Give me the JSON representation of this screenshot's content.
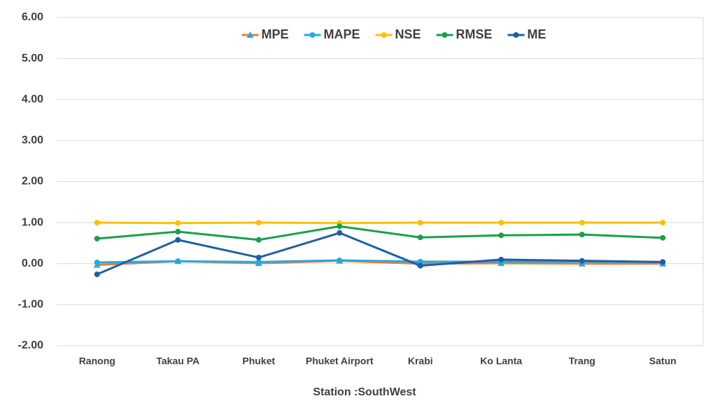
{
  "chart_data": {
    "type": "line",
    "x_label": "Station :SouthWest",
    "categories": [
      "Ranong",
      "Takau PA",
      "Phuket",
      "Phuket Airport",
      "Krabi",
      "Ko Lanta",
      "Trang",
      "Satun"
    ],
    "series": [
      {
        "name": "MPE",
        "color": "#ed7d31",
        "marker": "triangle",
        "marker_color": "#29a8e0",
        "values": [
          -0.03,
          0.06,
          0.01,
          0.07,
          0.0,
          0.01,
          0.0,
          0.0
        ]
      },
      {
        "name": "MAPE",
        "color": "#29a8e0",
        "marker": "circle",
        "marker_color": "#29a8e0",
        "values": [
          0.03,
          0.06,
          0.04,
          0.08,
          0.05,
          0.05,
          0.05,
          0.04
        ]
      },
      {
        "name": "NSE",
        "color": "#ffc000",
        "marker": "circle",
        "marker_color": "#ffc000",
        "values": [
          1.0,
          0.99,
          1.0,
          0.99,
          1.0,
          1.0,
          1.0,
          1.0
        ]
      },
      {
        "name": "RMSE",
        "color": "#1aa04a",
        "marker": "circle",
        "marker_color": "#1aa04a",
        "values": [
          0.61,
          0.78,
          0.58,
          0.91,
          0.64,
          0.69,
          0.71,
          0.63
        ]
      },
      {
        "name": "ME",
        "color": "#1f5fa8",
        "marker": "circle",
        "marker_color": "#1f5fa8",
        "values": [
          -0.26,
          0.58,
          0.15,
          0.75,
          -0.05,
          0.1,
          0.07,
          0.04
        ]
      }
    ],
    "ylim": [
      -2,
      6
    ],
    "yticks": [
      {
        "value": -2,
        "label": "-2.00"
      },
      {
        "value": -1,
        "label": "-1.00"
      },
      {
        "value": 0,
        "label": "0.00"
      },
      {
        "value": 1,
        "label": "1.00"
      },
      {
        "value": 2,
        "label": "2.00"
      },
      {
        "value": 3,
        "label": "3.00"
      },
      {
        "value": 4,
        "label": "4.00"
      },
      {
        "value": 5,
        "label": "5.00"
      },
      {
        "value": 6,
        "label": "6.00"
      }
    ],
    "grid": true,
    "legend": "top"
  }
}
